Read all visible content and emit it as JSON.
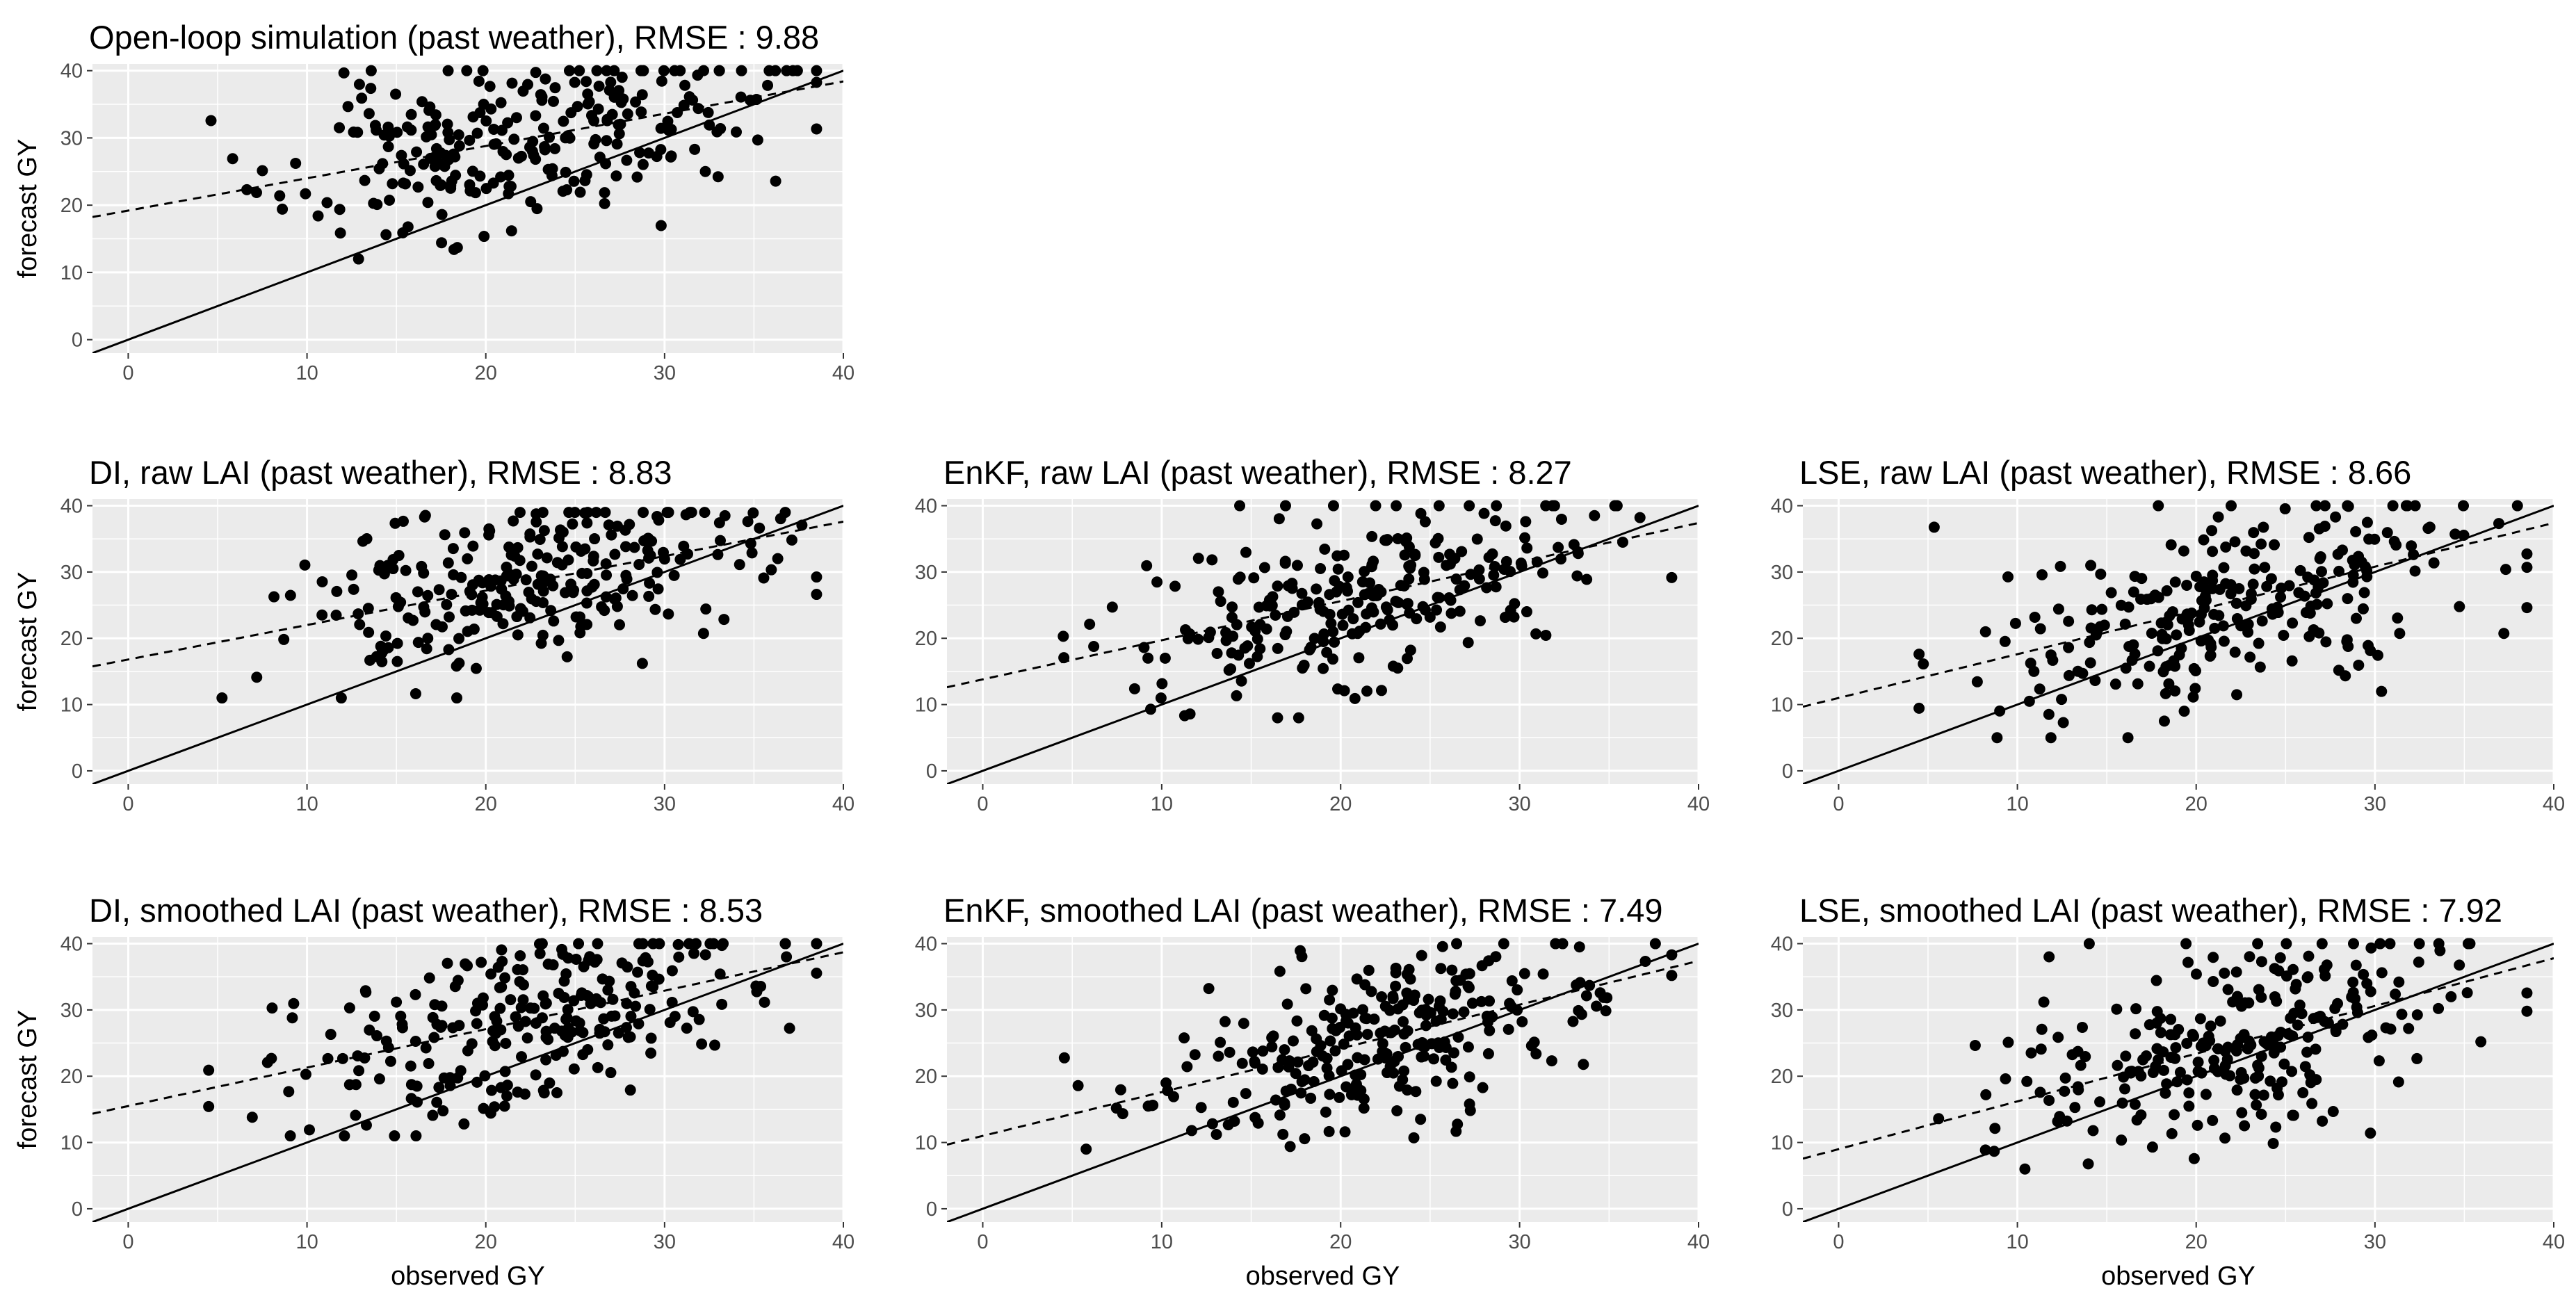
{
  "figure": {
    "background": "#ffffff",
    "panel_background": "#ebebeb",
    "gridline_color": "#ffffff",
    "tick_label_color": "#4d4d4d",
    "point_color": "#000000"
  },
  "chart_data": [
    {
      "id": "openloop",
      "type": "scatter",
      "title": "Open-loop simulation (past weather), RMSE : 9.88",
      "xlabel": "",
      "ylabel": "forecast GY",
      "xlim": [
        -2,
        40
      ],
      "ylim": [
        -2,
        41
      ],
      "xticks": [
        0,
        10,
        20,
        30,
        40
      ],
      "yticks": [
        0,
        10,
        20,
        30,
        40
      ],
      "identity_line": {
        "slope": 1,
        "intercept": 0,
        "style": "solid"
      },
      "fit_line": {
        "slope": 0.48,
        "intercept": 19.2,
        "style": "dashed"
      },
      "seed": 11,
      "points": {
        "n": 260,
        "x_mean": 22,
        "x_sd": 6.5,
        "y_slope": 0.48,
        "y_intercept": 19.2,
        "y_sd": 6.5,
        "y_min": 12,
        "y_max": 40
      }
    },
    {
      "id": "di-raw",
      "type": "scatter",
      "title": "DI, raw LAI (past weather), RMSE : 8.83",
      "xlabel": "",
      "ylabel": "forecast GY",
      "xlim": [
        -2,
        40
      ],
      "ylim": [
        -2,
        41
      ],
      "xticks": [
        0,
        10,
        20,
        30,
        40
      ],
      "yticks": [
        0,
        10,
        20,
        30,
        40
      ],
      "identity_line": {
        "slope": 1,
        "intercept": 0,
        "style": "solid"
      },
      "fit_line": {
        "slope": 0.52,
        "intercept": 16.8,
        "style": "dashed"
      },
      "seed": 23,
      "points": {
        "n": 260,
        "x_mean": 22,
        "x_sd": 6.5,
        "y_slope": 0.52,
        "y_intercept": 16.8,
        "y_sd": 6.3,
        "y_min": 11,
        "y_max": 39
      }
    },
    {
      "id": "enkf-raw",
      "type": "scatter",
      "title": "EnKF, raw LAI (past weather), RMSE : 8.27",
      "xlabel": "",
      "ylabel": "",
      "xlim": [
        -2,
        40
      ],
      "ylim": [
        -2,
        41
      ],
      "xticks": [
        0,
        10,
        20,
        30,
        40
      ],
      "yticks": [
        0,
        10,
        20,
        30,
        40
      ],
      "identity_line": {
        "slope": 1,
        "intercept": 0,
        "style": "solid"
      },
      "fit_line": {
        "slope": 0.59,
        "intercept": 13.8,
        "style": "dashed"
      },
      "seed": 37,
      "points": {
        "n": 260,
        "x_mean": 22,
        "x_sd": 6.5,
        "y_slope": 0.59,
        "y_intercept": 13.8,
        "y_sd": 6.2,
        "y_min": 8,
        "y_max": 40
      }
    },
    {
      "id": "lse-raw",
      "type": "scatter",
      "title": "LSE, raw LAI (past weather), RMSE : 8.66",
      "xlabel": "",
      "ylabel": "",
      "xlim": [
        -2,
        40
      ],
      "ylim": [
        -2,
        41
      ],
      "xticks": [
        0,
        10,
        20,
        30,
        40
      ],
      "yticks": [
        0,
        10,
        20,
        30,
        40
      ],
      "identity_line": {
        "slope": 1,
        "intercept": 0,
        "style": "solid"
      },
      "fit_line": {
        "slope": 0.66,
        "intercept": 11.0,
        "style": "dashed"
      },
      "seed": 41,
      "points": {
        "n": 260,
        "x_mean": 22,
        "x_sd": 6.5,
        "y_slope": 0.66,
        "y_intercept": 11.0,
        "y_sd": 8.0,
        "y_min": 5,
        "y_max": 40
      }
    },
    {
      "id": "di-smoothed",
      "type": "scatter",
      "title": "DI, smoothed LAI (past weather), RMSE : 8.53",
      "xlabel": "observed GY",
      "ylabel": "forecast GY",
      "xlim": [
        -2,
        40
      ],
      "ylim": [
        -2,
        41
      ],
      "xticks": [
        0,
        10,
        20,
        30,
        40
      ],
      "yticks": [
        0,
        10,
        20,
        30,
        40
      ],
      "identity_line": {
        "slope": 1,
        "intercept": 0,
        "style": "solid"
      },
      "fit_line": {
        "slope": 0.58,
        "intercept": 15.5,
        "style": "dashed"
      },
      "seed": 53,
      "points": {
        "n": 260,
        "x_mean": 22,
        "x_sd": 6.5,
        "y_slope": 0.58,
        "y_intercept": 15.5,
        "y_sd": 6.4,
        "y_min": 11,
        "y_max": 40
      }
    },
    {
      "id": "enkf-smoothed",
      "type": "scatter",
      "title": "EnKF, smoothed LAI (past weather), RMSE : 7.49",
      "xlabel": "observed GY",
      "ylabel": "",
      "xlim": [
        -2,
        40
      ],
      "ylim": [
        -2,
        41
      ],
      "xticks": [
        0,
        10,
        20,
        30,
        40
      ],
      "yticks": [
        0,
        10,
        20,
        30,
        40
      ],
      "identity_line": {
        "slope": 1,
        "intercept": 0,
        "style": "solid"
      },
      "fit_line": {
        "slope": 0.66,
        "intercept": 11.0,
        "style": "dashed"
      },
      "seed": 67,
      "points": {
        "n": 270,
        "x_mean": 22,
        "x_sd": 6.5,
        "y_slope": 0.66,
        "y_intercept": 11.0,
        "y_sd": 6.0,
        "y_min": 9,
        "y_max": 40
      }
    },
    {
      "id": "lse-smoothed",
      "type": "scatter",
      "title": "LSE, smoothed LAI (past weather), RMSE : 7.92",
      "xlabel": "observed GY",
      "ylabel": "",
      "xlim": [
        -2,
        40
      ],
      "ylim": [
        -2,
        41
      ],
      "xticks": [
        0,
        10,
        20,
        30,
        40
      ],
      "yticks": [
        0,
        10,
        20,
        30,
        40
      ],
      "identity_line": {
        "slope": 1,
        "intercept": 0,
        "style": "solid"
      },
      "fit_line": {
        "slope": 0.72,
        "intercept": 9.0,
        "style": "dashed"
      },
      "seed": 79,
      "points": {
        "n": 260,
        "x_mean": 22,
        "x_sd": 6.5,
        "y_slope": 0.72,
        "y_intercept": 9.0,
        "y_sd": 7.0,
        "y_min": 6,
        "y_max": 40
      }
    }
  ]
}
